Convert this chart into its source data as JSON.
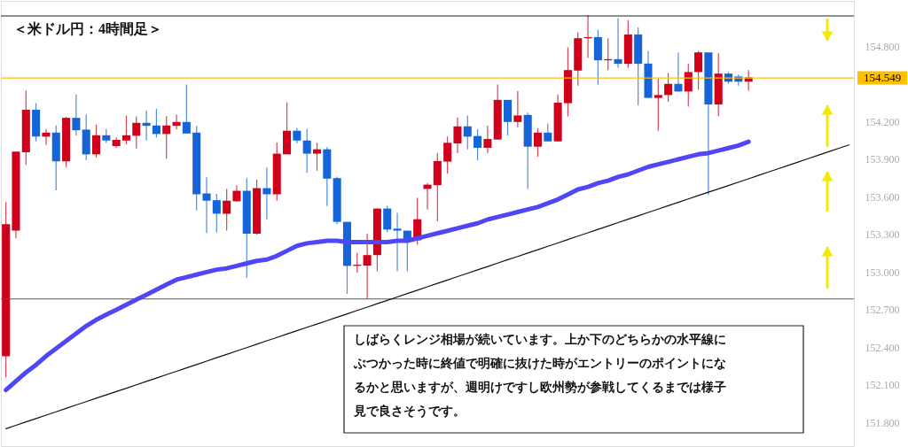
{
  "chart_data": {
    "type": "candlestick",
    "title": "＜米ドル円：4時間足＞",
    "categories": [
      null,
      null,
      null,
      null,
      null,
      null,
      null,
      null,
      null,
      null,
      null,
      null,
      null,
      null,
      null,
      null,
      null,
      null,
      null,
      null,
      null,
      null,
      null,
      null,
      null,
      null,
      null,
      null,
      null,
      null,
      null,
      null,
      null,
      null,
      null,
      null,
      null,
      null,
      null,
      null,
      null,
      null,
      null,
      null,
      null,
      null,
      null,
      null,
      null,
      null,
      null,
      null,
      null,
      null,
      null,
      null,
      null,
      null,
      null,
      null,
      null,
      null,
      null,
      null,
      null,
      null,
      null,
      null,
      null,
      null,
      null,
      null,
      null,
      null,
      null,
      null,
      null,
      null,
      null,
      null,
      null,
      null,
      null,
      null,
      null
    ],
    "ohlc": [
      [
        152.329,
        153.559,
        152.161,
        153.382
      ],
      [
        153.331,
        153.961,
        153.27,
        153.961
      ],
      [
        153.956,
        154.449,
        153.856,
        154.296
      ],
      [
        154.296,
        154.348,
        154.043,
        154.081
      ],
      [
        154.081,
        154.142,
        154.015,
        154.113
      ],
      [
        154.113,
        154.17,
        153.652,
        153.884
      ],
      [
        153.884,
        154.238,
        153.837,
        154.231
      ],
      [
        154.231,
        154.418,
        154.09,
        154.132
      ],
      [
        154.137,
        154.256,
        153.893,
        153.94
      ],
      [
        153.94,
        154.177,
        153.914,
        154.092
      ],
      [
        154.092,
        154.142,
        154.031,
        154.05
      ],
      [
        154.006,
        154.074,
        153.992,
        154.055
      ],
      [
        154.05,
        154.249,
        154.02,
        154.092
      ],
      [
        154.088,
        154.242,
        153.987,
        154.191
      ],
      [
        154.191,
        154.289,
        154.05,
        154.167
      ],
      [
        154.17,
        154.303,
        154.074,
        154.102
      ],
      [
        154.102,
        154.245,
        153.905,
        154.17
      ],
      [
        154.167,
        154.256,
        154.139,
        154.198
      ],
      [
        154.198,
        154.496,
        154.106,
        154.106
      ],
      [
        154.113,
        154.167,
        153.492,
        153.621
      ],
      [
        153.628,
        153.757,
        153.312,
        153.57
      ],
      [
        153.574,
        153.624,
        153.316,
        153.466
      ],
      [
        153.466,
        153.663,
        153.331,
        153.57
      ],
      [
        153.565,
        153.692,
        153.565,
        153.649
      ],
      [
        153.649,
        153.75,
        152.956,
        153.307
      ],
      [
        153.307,
        153.738,
        153.3,
        153.67
      ],
      [
        153.67,
        153.837,
        153.422,
        153.621
      ],
      [
        153.621,
        154.034,
        153.57,
        153.945
      ],
      [
        153.94,
        154.355,
        153.94,
        154.128
      ],
      [
        154.128,
        154.151,
        154.027,
        154.05
      ],
      [
        154.05,
        154.144,
        153.793,
        153.945
      ],
      [
        153.945,
        154.032,
        153.809,
        153.98
      ],
      [
        153.98,
        153.997,
        153.528,
        153.746
      ],
      [
        153.75,
        153.762,
        153.382,
        153.401
      ],
      [
        153.401,
        153.401,
        152.827,
        153.05
      ],
      [
        153.05,
        153.153,
        152.996,
        153.059
      ],
      [
        153.052,
        153.307,
        152.785,
        153.136
      ],
      [
        153.136,
        153.507,
        153.007,
        153.507
      ],
      [
        153.507,
        153.528,
        153.317,
        153.34
      ],
      [
        153.347,
        153.472,
        153.007,
        153.331
      ],
      [
        153.331,
        153.331,
        153.007,
        153.254
      ],
      [
        153.254,
        153.593,
        153.218,
        153.422
      ],
      [
        153.664,
        153.711,
        153.5,
        153.698
      ],
      [
        153.694,
        153.95,
        153.406,
        153.886
      ],
      [
        153.882,
        154.081,
        153.786,
        154.032
      ],
      [
        154.027,
        154.233,
        153.95,
        154.163
      ],
      [
        154.163,
        154.25,
        153.98,
        154.081
      ],
      [
        154.086,
        154.14,
        153.893,
        153.992
      ],
      [
        153.992,
        154.168,
        153.95,
        154.062
      ],
      [
        154.058,
        154.496,
        154.058,
        154.374
      ],
      [
        154.374,
        154.374,
        154.09,
        154.198
      ],
      [
        154.198,
        154.444,
        154.156,
        154.25
      ],
      [
        154.254,
        154.273,
        153.663,
        154.001
      ],
      [
        154.001,
        154.148,
        153.921,
        154.113
      ],
      [
        154.113,
        154.186,
        154.043,
        154.043
      ],
      [
        154.043,
        154.418,
        154.043,
        154.352
      ],
      [
        154.348,
        154.793,
        154.242,
        154.612
      ],
      [
        154.608,
        154.913,
        154.488,
        154.866
      ],
      [
        154.866,
        155.051,
        154.711,
        154.875
      ],
      [
        154.875,
        154.934,
        154.495,
        154.69
      ],
      [
        154.69,
        154.866,
        154.612,
        154.699
      ],
      [
        154.699,
        155.027,
        154.629,
        154.662
      ],
      [
        154.662,
        155.011,
        154.629,
        154.896
      ],
      [
        154.896,
        154.952,
        154.331,
        154.662
      ],
      [
        154.664,
        154.765,
        154.39,
        154.39
      ],
      [
        154.39,
        154.542,
        154.127,
        154.413
      ],
      [
        154.413,
        154.589,
        154.359,
        154.502
      ],
      [
        154.502,
        154.753,
        154.441,
        154.441
      ],
      [
        154.441,
        154.664,
        154.32,
        154.596
      ],
      [
        154.596,
        154.765,
        154.455,
        154.753
      ],
      [
        154.753,
        154.753,
        153.616,
        154.338
      ],
      [
        154.338,
        154.746,
        154.244,
        154.584
      ],
      [
        154.584,
        154.596,
        154.502,
        154.519
      ],
      [
        154.561,
        154.577,
        154.488,
        154.519
      ],
      [
        154.519,
        154.612,
        154.448,
        154.554
      ],
      null,
      null,
      null,
      null,
      null,
      null,
      null,
      null,
      null,
      null
    ],
    "colors": [
      "#d0021b",
      "#d0021b",
      "#d0021b",
      "#1565d8",
      "#d0021b",
      "#1565d8",
      "#d0021b",
      "#1565d8",
      "#1565d8",
      "#d0021b",
      "#1565d8",
      "#d0021b",
      "#d0021b",
      "#d0021b",
      "#1565d8",
      "#1565d8",
      "#d0021b",
      "#d0021b",
      "#1565d8",
      "#1565d8",
      "#1565d8",
      "#1565d8",
      "#d0021b",
      "#d0021b",
      "#1565d8",
      "#d0021b",
      "#1565d8",
      "#d0021b",
      "#d0021b",
      "#1565d8",
      "#1565d8",
      "#d0021b",
      "#1565d8",
      "#1565d8",
      "#1565d8",
      "#d0021b",
      "#d0021b",
      "#d0021b",
      "#1565d8",
      "#1565d8",
      "#1565d8",
      "#d0021b",
      "#d0021b",
      "#d0021b",
      "#d0021b",
      "#d0021b",
      "#1565d8",
      "#1565d8",
      "#d0021b",
      "#d0021b",
      "#1565d8",
      "#d0021b",
      "#1565d8",
      "#d0021b",
      "#1565d8",
      "#d0021b",
      "#d0021b",
      "#d0021b",
      "#d0021b",
      "#1565d8",
      "#d0021b",
      "#1565d8",
      "#d0021b",
      "#1565d8",
      "#1565d8",
      "#d0021b",
      "#d0021b",
      "#1565d8",
      "#d0021b",
      "#d0021b",
      "#1565d8",
      "#d0021b",
      "#1565d8",
      "#1565d8",
      "#d0021b",
      null,
      null,
      null,
      null,
      null,
      null,
      null,
      null,
      null,
      null
    ],
    "series": [
      {
        "type": "line",
        "color": "#4f46f5",
        "values": [
          152.06,
          152.13,
          152.2,
          152.26,
          152.33,
          152.39,
          152.45,
          152.51,
          152.57,
          152.62,
          152.66,
          152.7,
          152.74,
          152.78,
          152.82,
          152.86,
          152.9,
          152.94,
          152.96,
          152.98,
          153.0,
          153.02,
          153.03,
          153.05,
          153.07,
          153.09,
          153.1,
          153.13,
          153.17,
          153.21,
          153.23,
          153.24,
          153.25,
          153.25,
          153.24,
          153.24,
          153.24,
          153.24,
          153.24,
          153.25,
          153.25,
          153.27,
          153.29,
          153.31,
          153.33,
          153.35,
          153.37,
          153.39,
          153.42,
          153.44,
          153.46,
          153.48,
          153.5,
          153.52,
          153.55,
          153.58,
          153.62,
          153.66,
          153.68,
          153.71,
          153.73,
          153.76,
          153.78,
          153.81,
          153.84,
          153.86,
          153.88,
          153.9,
          153.92,
          153.94,
          153.95,
          153.97,
          153.99,
          154.01,
          154.04,
          null,
          null,
          null,
          null,
          null,
          null,
          null,
          null,
          null,
          null
        ]
      },
      {
        "type": "line",
        "color": "#111111",
        "values": [
          151.751,
          151.778,
          151.805,
          151.832,
          151.859,
          151.886,
          151.913,
          151.94,
          151.967,
          151.994,
          152.021,
          152.047,
          152.074,
          152.101,
          152.128,
          152.155,
          152.182,
          152.209,
          152.236,
          152.263,
          152.29,
          152.317,
          152.344,
          152.371,
          152.398,
          152.425,
          152.452,
          152.479,
          152.506,
          152.533,
          152.56,
          152.586,
          152.613,
          152.64,
          152.667,
          152.694,
          152.721,
          152.748,
          152.775,
          152.802,
          152.829,
          152.856,
          152.883,
          152.91,
          152.937,
          152.964,
          152.991,
          153.018,
          153.045,
          153.072,
          153.099,
          153.125,
          153.152,
          153.179,
          153.206,
          153.233,
          153.26,
          153.287,
          153.314,
          153.341,
          153.368,
          153.395,
          153.422,
          153.449,
          153.476,
          153.503,
          153.53,
          153.557,
          153.584,
          153.611,
          153.638,
          153.664,
          153.691,
          153.718,
          153.745,
          153.772,
          153.799,
          153.826,
          153.853,
          153.88,
          153.907,
          153.934,
          153.961,
          153.988,
          154.015
        ]
      }
    ],
    "ref_lines": [
      {
        "axis": "y",
        "value": 155.044,
        "color": "#222222"
      },
      {
        "axis": "y",
        "value": 154.549,
        "label": "154.549",
        "color": "#ffc000"
      },
      {
        "axis": "y",
        "value": 152.786,
        "color": "#555555"
      }
    ],
    "annotations": [
      "しばらくレンジ相場が続いています。上か下のどちらかの水平線にぶつかった時に終値で明確に抜けた時がエントリーのポイントになるかと思いますが、週明けですし欧州勢が参戦してくるまでは様子見で良さそうです。"
    ],
    "ylim": [
      151.612,
      155.164
    ],
    "yticks": [
      {
        "value": 151.8,
        "label": "151.800"
      },
      {
        "value": 152.1,
        "label": "152.100"
      },
      {
        "value": 152.4,
        "label": "152.400"
      },
      {
        "value": 152.7,
        "label": "152.700"
      },
      {
        "value": 153.0,
        "label": "153.000"
      },
      {
        "value": 153.3,
        "label": "153.300"
      },
      {
        "value": 153.6,
        "label": "153.600"
      },
      {
        "value": 153.9,
        "label": "153.900"
      },
      {
        "value": 154.2,
        "label": "154.200"
      },
      {
        "value": 154.8,
        "label": "154.800"
      }
    ],
    "tick_labels": "y",
    "grid": false
  }
}
